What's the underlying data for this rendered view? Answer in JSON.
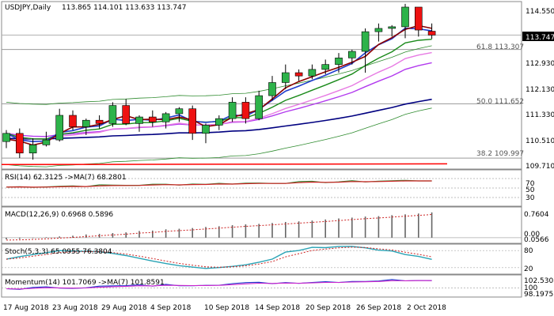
{
  "chart_data": [
    {
      "type": "candlestick",
      "title": "USDJPY,Daily",
      "ohlc_text": "113.865 114.101 113.633 113.747",
      "y_ticks": [
        "114.550",
        "113.747",
        "112.930",
        "112.130",
        "111.330",
        "110.510",
        "109.710"
      ],
      "last_price": "113.747",
      "ylim": [
        109.71,
        114.72
      ],
      "fib_levels": [
        {
          "label": "61.8 113.307",
          "value": 113.307
        },
        {
          "label": "50.0 111.652",
          "value": 111.652
        },
        {
          "label": "38.2 109.997",
          "value": 109.997
        }
      ],
      "candles": [
        {
          "o": 110.5,
          "h": 110.85,
          "l": 110.3,
          "c": 110.75
        },
        {
          "o": 110.75,
          "h": 110.9,
          "l": 110.0,
          "c": 110.15
        },
        {
          "o": 110.15,
          "h": 110.6,
          "l": 109.95,
          "c": 110.4
        },
        {
          "o": 110.4,
          "h": 110.8,
          "l": 110.35,
          "c": 110.55
        },
        {
          "o": 110.55,
          "h": 111.5,
          "l": 110.5,
          "c": 111.3
        },
        {
          "o": 111.3,
          "h": 111.45,
          "l": 110.85,
          "c": 110.95
        },
        {
          "o": 110.95,
          "h": 111.2,
          "l": 110.7,
          "c": 111.15
        },
        {
          "o": 111.15,
          "h": 111.3,
          "l": 110.9,
          "c": 111.05
        },
        {
          "o": 111.05,
          "h": 111.7,
          "l": 110.95,
          "c": 111.6
        },
        {
          "o": 111.6,
          "h": 111.8,
          "l": 111.0,
          "c": 111.05
        },
        {
          "o": 111.05,
          "h": 111.3,
          "l": 110.8,
          "c": 111.25
        },
        {
          "o": 111.25,
          "h": 111.45,
          "l": 110.95,
          "c": 111.1
        },
        {
          "o": 111.1,
          "h": 111.4,
          "l": 110.9,
          "c": 111.35
        },
        {
          "o": 111.35,
          "h": 111.55,
          "l": 111.1,
          "c": 111.5
        },
        {
          "o": 111.5,
          "h": 111.6,
          "l": 110.55,
          "c": 110.75
        },
        {
          "o": 110.75,
          "h": 111.05,
          "l": 110.45,
          "c": 111.0
        },
        {
          "o": 111.0,
          "h": 111.3,
          "l": 110.85,
          "c": 111.2
        },
        {
          "o": 111.2,
          "h": 111.85,
          "l": 111.1,
          "c": 111.7
        },
        {
          "o": 111.7,
          "h": 111.85,
          "l": 111.05,
          "c": 111.2
        },
        {
          "o": 111.2,
          "h": 112.05,
          "l": 111.15,
          "c": 111.9
        },
        {
          "o": 111.9,
          "h": 112.5,
          "l": 111.75,
          "c": 112.3
        },
        {
          "o": 112.3,
          "h": 112.85,
          "l": 112.1,
          "c": 112.6
        },
        {
          "o": 112.6,
          "h": 112.7,
          "l": 112.35,
          "c": 112.5
        },
        {
          "o": 112.5,
          "h": 112.85,
          "l": 112.4,
          "c": 112.7
        },
        {
          "o": 112.7,
          "h": 113.0,
          "l": 112.55,
          "c": 112.85
        },
        {
          "o": 112.85,
          "h": 113.2,
          "l": 112.6,
          "c": 113.05
        },
        {
          "o": 113.05,
          "h": 113.3,
          "l": 112.85,
          "c": 113.25
        },
        {
          "o": 113.25,
          "h": 113.95,
          "l": 112.6,
          "c": 113.85
        },
        {
          "o": 113.85,
          "h": 114.1,
          "l": 113.55,
          "c": 113.95
        },
        {
          "o": 113.95,
          "h": 114.05,
          "l": 113.7,
          "c": 114.0
        },
        {
          "o": 114.0,
          "h": 114.7,
          "l": 113.65,
          "c": 114.6
        },
        {
          "o": 114.6,
          "h": 114.6,
          "l": 113.7,
          "c": 113.9
        },
        {
          "o": 113.865,
          "h": 114.101,
          "l": 113.633,
          "c": 113.747
        }
      ]
    },
    {
      "type": "line",
      "title": "RSI(14) 62.3125  ->MA(7) 68.2801",
      "y_ticks": [
        "70",
        "50",
        "30"
      ],
      "ylim": [
        15,
        85
      ]
    },
    {
      "type": "bar",
      "title": "MACD(12,26,9) 0.6968 0.5896",
      "y_ticks": [
        "0.7604",
        "0.00",
        "0.0566"
      ],
      "ylim": [
        -0.12,
        0.86
      ]
    },
    {
      "type": "line",
      "title": "Stoch(5,3,3) 65.0955 76.3804",
      "y_ticks": [
        "80",
        "20"
      ],
      "ylim": [
        0,
        100
      ]
    },
    {
      "type": "line",
      "title": "Momentum(14) 101.7069  ->MA(7) 101.8591",
      "y_ticks": [
        "102.5308",
        "100",
        "98.1975"
      ],
      "ylim": [
        98.0,
        102.9
      ]
    }
  ],
  "x_labels": [
    "17 Aug 2018",
    "23 Aug 2018",
    "29 Aug 2018",
    "4 Sep 2018",
    "10 Sep 2018",
    "14 Sep 2018",
    "20 Sep 2018",
    "26 Sep 2018",
    "2 Oct 2018"
  ],
  "colors": {
    "up": "#2db34a",
    "down": "#ee1111",
    "ma1": "#8b0000",
    "ma2": "#1e3ccd",
    "ma3": "#1a8a1a",
    "ma4": "#e77be3",
    "ma5": "#b23aee",
    "ma6": "#000080",
    "band": "#2e8b2e",
    "red_line": "#ff0000"
  }
}
